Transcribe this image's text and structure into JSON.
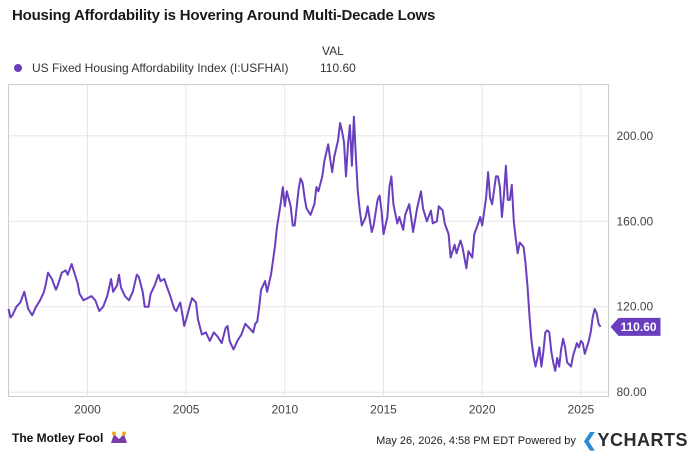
{
  "title": "Housing Affordability is Hovering Around Multi-Decade Lows",
  "legend": {
    "header": "VAL",
    "series_name": "US Fixed Housing Affordability Index (I:USFHAI)",
    "series_value": "110.60"
  },
  "last_value_label": "110.60",
  "footer": {
    "brand": "The Motley Fool",
    "timestamp": "May 26, 2026, 4:58 PM EDT",
    "powered_by": "Powered by",
    "provider": "YCHARTS"
  },
  "colors": {
    "series": "#6a3fbf",
    "grid": "#e6e6e6",
    "axis": "#cccccc",
    "text": "#444444"
  },
  "chart_data": {
    "type": "line",
    "title": "Housing Affordability is Hovering Around Multi-Decade Lows",
    "xlabel": "",
    "ylabel": "",
    "xlim": [
      1996.0,
      2026.4
    ],
    "ylim": [
      78,
      224
    ],
    "x_ticks": [
      "2000",
      "2005",
      "2010",
      "2015",
      "2020",
      "2025"
    ],
    "y_ticks": [
      "80.00",
      "120.00",
      "160.00",
      "200.00"
    ],
    "grid": "vertical and horizontal",
    "legend_position": "top-left",
    "series": [
      {
        "name": "US Fixed Housing Affordability Index (I:USFHAI)",
        "points": [
          [
            1996.0,
            119
          ],
          [
            1996.1,
            115
          ],
          [
            1996.2,
            116
          ],
          [
            1996.4,
            120
          ],
          [
            1996.6,
            122
          ],
          [
            1996.8,
            127
          ],
          [
            1996.9,
            123
          ],
          [
            1997.0,
            119
          ],
          [
            1997.2,
            116
          ],
          [
            1997.4,
            120
          ],
          [
            1997.6,
            123
          ],
          [
            1997.8,
            127
          ],
          [
            1997.9,
            131
          ],
          [
            1998.0,
            136
          ],
          [
            1998.2,
            133
          ],
          [
            1998.4,
            128
          ],
          [
            1998.5,
            130
          ],
          [
            1998.7,
            136
          ],
          [
            1998.9,
            137
          ],
          [
            1999.0,
            135
          ],
          [
            1999.2,
            140
          ],
          [
            1999.3,
            137
          ],
          [
            1999.5,
            131
          ],
          [
            1999.6,
            126
          ],
          [
            1999.8,
            123
          ],
          [
            2000.0,
            124
          ],
          [
            2000.2,
            125
          ],
          [
            2000.4,
            123
          ],
          [
            2000.6,
            118
          ],
          [
            2000.8,
            120
          ],
          [
            2001.0,
            125
          ],
          [
            2001.2,
            133
          ],
          [
            2001.3,
            127
          ],
          [
            2001.5,
            130
          ],
          [
            2001.6,
            135
          ],
          [
            2001.7,
            129
          ],
          [
            2001.9,
            125
          ],
          [
            2002.1,
            123
          ],
          [
            2002.3,
            127
          ],
          [
            2002.5,
            135
          ],
          [
            2002.6,
            134
          ],
          [
            2002.8,
            127
          ],
          [
            2002.9,
            120
          ],
          [
            2003.1,
            120
          ],
          [
            2003.2,
            126
          ],
          [
            2003.4,
            130
          ],
          [
            2003.6,
            135
          ],
          [
            2003.7,
            132
          ],
          [
            2003.9,
            133
          ],
          [
            2004.0,
            130
          ],
          [
            2004.2,
            125
          ],
          [
            2004.4,
            119
          ],
          [
            2004.5,
            118
          ],
          [
            2004.7,
            122
          ],
          [
            2004.8,
            117
          ],
          [
            2004.9,
            111
          ],
          [
            2005.0,
            114
          ],
          [
            2005.2,
            121
          ],
          [
            2005.3,
            124
          ],
          [
            2005.5,
            122
          ],
          [
            2005.6,
            114
          ],
          [
            2005.8,
            107
          ],
          [
            2006.0,
            108
          ],
          [
            2006.2,
            104
          ],
          [
            2006.4,
            108
          ],
          [
            2006.6,
            106
          ],
          [
            2006.8,
            103
          ],
          [
            2007.0,
            110
          ],
          [
            2007.1,
            111
          ],
          [
            2007.2,
            104
          ],
          [
            2007.4,
            100
          ],
          [
            2007.6,
            104
          ],
          [
            2007.8,
            107
          ],
          [
            2008.0,
            112
          ],
          [
            2008.2,
            110
          ],
          [
            2008.4,
            108
          ],
          [
            2008.5,
            112
          ],
          [
            2008.6,
            113
          ],
          [
            2008.7,
            120
          ],
          [
            2008.8,
            128
          ],
          [
            2009.0,
            132
          ],
          [
            2009.1,
            127
          ],
          [
            2009.3,
            135
          ],
          [
            2009.5,
            148
          ],
          [
            2009.6,
            157
          ],
          [
            2009.8,
            169
          ],
          [
            2009.9,
            176
          ],
          [
            2010.0,
            167
          ],
          [
            2010.1,
            174
          ],
          [
            2010.3,
            167
          ],
          [
            2010.4,
            158
          ],
          [
            2010.5,
            158
          ],
          [
            2010.7,
            175
          ],
          [
            2010.8,
            180
          ],
          [
            2010.9,
            178
          ],
          [
            2011.0,
            171
          ],
          [
            2011.1,
            166
          ],
          [
            2011.3,
            163
          ],
          [
            2011.5,
            168
          ],
          [
            2011.6,
            176
          ],
          [
            2011.7,
            174
          ],
          [
            2011.9,
            181
          ],
          [
            2012.0,
            188
          ],
          [
            2012.2,
            196
          ],
          [
            2012.3,
            189
          ],
          [
            2012.4,
            183
          ],
          [
            2012.5,
            190
          ],
          [
            2012.7,
            198
          ],
          [
            2012.8,
            206
          ],
          [
            2012.9,
            202
          ],
          [
            2013.0,
            197
          ],
          [
            2013.1,
            181
          ],
          [
            2013.2,
            196
          ],
          [
            2013.3,
            205
          ],
          [
            2013.4,
            186
          ],
          [
            2013.5,
            209
          ],
          [
            2013.6,
            190
          ],
          [
            2013.7,
            174
          ],
          [
            2013.8,
            165
          ],
          [
            2013.9,
            158
          ],
          [
            2014.1,
            162
          ],
          [
            2014.2,
            167
          ],
          [
            2014.4,
            155
          ],
          [
            2014.5,
            158
          ],
          [
            2014.7,
            170
          ],
          [
            2014.8,
            172
          ],
          [
            2014.9,
            165
          ],
          [
            2015.0,
            154
          ],
          [
            2015.2,
            162
          ],
          [
            2015.3,
            176
          ],
          [
            2015.4,
            181
          ],
          [
            2015.5,
            168
          ],
          [
            2015.7,
            159
          ],
          [
            2015.8,
            162
          ],
          [
            2016.0,
            156
          ],
          [
            2016.1,
            163
          ],
          [
            2016.3,
            168
          ],
          [
            2016.4,
            162
          ],
          [
            2016.5,
            155
          ],
          [
            2016.7,
            166
          ],
          [
            2016.8,
            170
          ],
          [
            2016.9,
            174
          ],
          [
            2017.0,
            166
          ],
          [
            2017.2,
            160
          ],
          [
            2017.4,
            165
          ],
          [
            2017.5,
            159
          ],
          [
            2017.7,
            160
          ],
          [
            2017.8,
            167
          ],
          [
            2018.0,
            165
          ],
          [
            2018.1,
            159
          ],
          [
            2018.3,
            154
          ],
          [
            2018.4,
            143
          ],
          [
            2018.6,
            149
          ],
          [
            2018.7,
            145
          ],
          [
            2018.9,
            151
          ],
          [
            2019.0,
            148
          ],
          [
            2019.2,
            138
          ],
          [
            2019.3,
            146
          ],
          [
            2019.5,
            143
          ],
          [
            2019.6,
            154
          ],
          [
            2019.8,
            159
          ],
          [
            2019.9,
            162
          ],
          [
            2020.0,
            158
          ],
          [
            2020.2,
            171
          ],
          [
            2020.3,
            183
          ],
          [
            2020.4,
            171
          ],
          [
            2020.5,
            168
          ],
          [
            2020.7,
            181
          ],
          [
            2020.8,
            181
          ],
          [
            2020.9,
            176
          ],
          [
            2021.0,
            162
          ],
          [
            2021.1,
            172
          ],
          [
            2021.2,
            186
          ],
          [
            2021.3,
            170
          ],
          [
            2021.4,
            170
          ],
          [
            2021.5,
            177
          ],
          [
            2021.6,
            160
          ],
          [
            2021.7,
            152
          ],
          [
            2021.8,
            145
          ],
          [
            2021.9,
            150
          ],
          [
            2022.1,
            148
          ],
          [
            2022.2,
            140
          ],
          [
            2022.3,
            129
          ],
          [
            2022.4,
            115
          ],
          [
            2022.5,
            104
          ],
          [
            2022.6,
            97
          ],
          [
            2022.7,
            92
          ],
          [
            2022.8,
            96
          ],
          [
            2022.9,
            101
          ],
          [
            2023.0,
            92
          ],
          [
            2023.1,
            99
          ],
          [
            2023.2,
            108
          ],
          [
            2023.3,
            109
          ],
          [
            2023.4,
            108
          ],
          [
            2023.5,
            99
          ],
          [
            2023.6,
            94
          ],
          [
            2023.7,
            90
          ],
          [
            2023.8,
            96
          ],
          [
            2023.9,
            92
          ],
          [
            2024.0,
            100
          ],
          [
            2024.1,
            105
          ],
          [
            2024.2,
            101
          ],
          [
            2024.3,
            94
          ],
          [
            2024.5,
            92
          ],
          [
            2024.6,
            97
          ],
          [
            2024.8,
            103
          ],
          [
            2024.9,
            101
          ],
          [
            2025.0,
            104
          ],
          [
            2025.1,
            103
          ],
          [
            2025.2,
            98
          ],
          [
            2025.4,
            104
          ],
          [
            2025.5,
            108
          ],
          [
            2025.6,
            115
          ],
          [
            2025.7,
            119
          ],
          [
            2025.8,
            117
          ],
          [
            2025.9,
            112
          ],
          [
            2026.0,
            110.6
          ]
        ]
      }
    ]
  }
}
